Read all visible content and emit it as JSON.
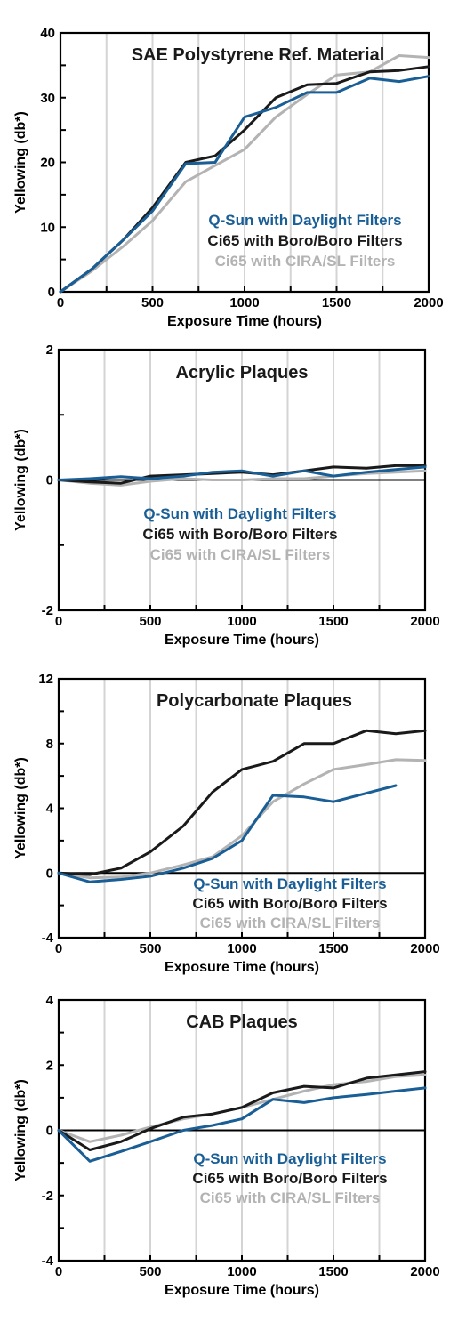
{
  "chart_data": [
    {
      "type": "line",
      "title": "SAE Polystyrene Ref. Material",
      "xlabel": "Exposure Time (hours)",
      "ylabel": "Yellowing (db*)",
      "xlim": [
        0,
        2000
      ],
      "ylim": [
        0,
        40
      ],
      "xticks": [
        0,
        500,
        1000,
        1500,
        2000
      ],
      "yticks": [
        0,
        10,
        20,
        30,
        40
      ],
      "grid": true,
      "legend": [
        "Q-Sun with Daylight Filters",
        "Ci65 with Boro/Boro Filters",
        "Ci65 with CIRA/SL Filters"
      ],
      "series": [
        {
          "name": "Ci65 with CIRA/SL Filters",
          "color": "#b3b3b3",
          "x": [
            0,
            170,
            340,
            500,
            680,
            840,
            1000,
            1170,
            1340,
            1500,
            1680,
            1840,
            2000
          ],
          "y": [
            0,
            3.2,
            7,
            11,
            17,
            19.5,
            22,
            27,
            30.5,
            33.5,
            34,
            36.5,
            36.2
          ]
        },
        {
          "name": "Ci65 with Boro/Boro Filters",
          "color": "#1a1a1a",
          "x": [
            0,
            170,
            340,
            500,
            680,
            840,
            1000,
            1170,
            1340,
            1500,
            1680,
            1840,
            2000
          ],
          "y": [
            0,
            3.5,
            8,
            13,
            20,
            21,
            25,
            30,
            32,
            32.2,
            34,
            34.2,
            34.8
          ]
        },
        {
          "name": "Q-Sun with Daylight Filters",
          "color": "#1a5e96",
          "x": [
            0,
            170,
            340,
            500,
            680,
            840,
            1000,
            1170,
            1340,
            1500,
            1680,
            1840,
            2000
          ],
          "y": [
            0,
            3.5,
            8,
            12.5,
            19.8,
            20,
            27,
            28.5,
            30.8,
            30.8,
            33,
            32.5,
            33.3
          ]
        }
      ]
    },
    {
      "type": "line",
      "title": "Acrylic Plaques",
      "xlabel": "Exposure Time (hours)",
      "ylabel": "Yellowing (db*)",
      "xlim": [
        0,
        2000
      ],
      "ylim": [
        -2,
        2
      ],
      "xticks": [
        0,
        500,
        1000,
        1500,
        2000
      ],
      "yticks": [
        -2,
        0,
        2
      ],
      "grid": true,
      "legend": [
        "Q-Sun with Daylight Filters",
        "Ci65 with Boro/Boro Filters",
        "Ci65 with CIRA/SL Filters"
      ],
      "series": [
        {
          "name": "Ci65 with CIRA/SL Filters",
          "color": "#b3b3b3",
          "x": [
            0,
            170,
            340,
            500,
            680,
            840,
            1000,
            1170,
            1340,
            1500,
            1680,
            1840,
            2000
          ],
          "y": [
            0,
            -0.05,
            -0.08,
            -0.02,
            0.02,
            0,
            0,
            0.02,
            0.02,
            0.06,
            0.1,
            0.12,
            0.14
          ]
        },
        {
          "name": "Ci65 with Boro/Boro Filters",
          "color": "#1a1a1a",
          "x": [
            0,
            170,
            340,
            500,
            680,
            840,
            1000,
            1170,
            1340,
            1500,
            1680,
            1840,
            2000
          ],
          "y": [
            0,
            -0.03,
            -0.05,
            0.06,
            0.08,
            0.1,
            0.12,
            0.08,
            0.14,
            0.2,
            0.18,
            0.22,
            0.22
          ]
        },
        {
          "name": "Q-Sun with Daylight Filters",
          "color": "#1a5e96",
          "x": [
            0,
            170,
            340,
            500,
            680,
            840,
            1000,
            1170,
            1340,
            1500,
            1680,
            1840,
            2000
          ],
          "y": [
            0,
            0.02,
            0.05,
            0.02,
            0.06,
            0.12,
            0.14,
            0.06,
            0.14,
            0.06,
            0.12,
            0.16,
            0.2
          ]
        }
      ]
    },
    {
      "type": "line",
      "title": "Polycarbonate Plaques",
      "xlabel": "Exposure Time (hours)",
      "ylabel": "Yellowing (db*)",
      "xlim": [
        0,
        2000
      ],
      "ylim": [
        -4,
        12
      ],
      "xticks": [
        0,
        500,
        1000,
        1500,
        2000
      ],
      "yticks": [
        -4,
        0,
        4,
        8,
        12
      ],
      "grid": true,
      "legend": [
        "Q-Sun with Daylight Filters",
        "Ci65 with Boro/Boro Filters",
        "Ci65 with CIRA/SL Filters"
      ],
      "series": [
        {
          "name": "Ci65 with CIRA/SL Filters",
          "color": "#b3b3b3",
          "x": [
            0,
            170,
            340,
            500,
            680,
            840,
            1000,
            1170,
            1340,
            1500,
            1680,
            1840,
            2000
          ],
          "y": [
            0,
            -0.3,
            -0.25,
            0,
            0.5,
            1,
            2.3,
            4.4,
            5.5,
            6.4,
            6.7,
            7,
            6.95
          ]
        },
        {
          "name": "Ci65 with Boro/Boro Filters",
          "color": "#1a1a1a",
          "x": [
            0,
            170,
            340,
            500,
            680,
            840,
            1000,
            1170,
            1340,
            1500,
            1680,
            1840,
            2000
          ],
          "y": [
            0,
            -0.1,
            0.3,
            1.3,
            2.9,
            5,
            6.4,
            6.9,
            8,
            8,
            8.8,
            8.6,
            8.8
          ]
        },
        {
          "name": "Q-Sun with Daylight Filters",
          "color": "#1a5e96",
          "x": [
            0,
            170,
            340,
            500,
            680,
            840,
            1000,
            1170,
            1340,
            1500,
            1840
          ],
          "y": [
            0,
            -0.55,
            -0.4,
            -0.2,
            0.3,
            0.9,
            2,
            4.8,
            4.7,
            4.4,
            5.4
          ]
        }
      ]
    },
    {
      "type": "line",
      "title": "CAB Plaques",
      "xlabel": "Exposure Time (hours)",
      "ylabel": "Yellowing (db*)",
      "xlim": [
        0,
        2000
      ],
      "ylim": [
        -4,
        4
      ],
      "xticks": [
        0,
        500,
        1000,
        1500,
        2000
      ],
      "yticks": [
        -4,
        -2,
        0,
        2,
        4
      ],
      "grid": true,
      "legend": [
        "Q-Sun with Daylight Filters",
        "Ci65 with Boro/Boro Filters",
        "Ci65 with CIRA/SL Filters"
      ],
      "series": [
        {
          "name": "Ci65 with CIRA/SL Filters",
          "color": "#b3b3b3",
          "x": [
            0,
            170,
            340,
            500,
            680,
            840,
            1000,
            1170,
            1340,
            1500,
            1680,
            1840,
            2000
          ],
          "y": [
            0,
            -0.35,
            -0.15,
            0.1,
            0.35,
            0.5,
            0.7,
            0.95,
            1.2,
            1.4,
            1.5,
            1.65,
            1.7
          ]
        },
        {
          "name": "Ci65 with Boro/Boro Filters",
          "color": "#1a1a1a",
          "x": [
            0,
            170,
            340,
            500,
            680,
            840,
            1000,
            1170,
            1340,
            1500,
            1680,
            1840,
            2000
          ],
          "y": [
            0,
            -0.6,
            -0.35,
            0.05,
            0.4,
            0.5,
            0.7,
            1.15,
            1.35,
            1.3,
            1.6,
            1.7,
            1.8
          ]
        },
        {
          "name": "Q-Sun with Daylight Filters",
          "color": "#1a5e96",
          "x": [
            0,
            170,
            340,
            500,
            680,
            840,
            1000,
            1170,
            1340,
            1500,
            1680,
            1840,
            2000
          ],
          "y": [
            0,
            -0.95,
            -0.65,
            -0.35,
            0,
            0.15,
            0.35,
            0.95,
            0.85,
            1,
            1.1,
            1.2,
            1.3
          ]
        }
      ]
    }
  ]
}
